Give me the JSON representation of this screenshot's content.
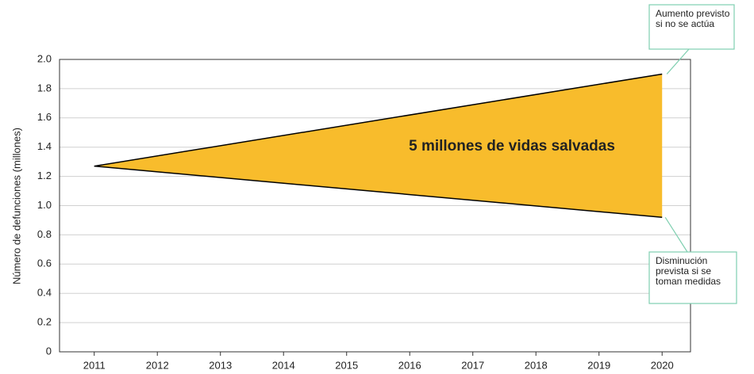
{
  "chart_data": {
    "type": "line",
    "ylabel": "Número de defunciones (millones)",
    "x": [
      2011,
      2020
    ],
    "series": [
      {
        "color": "#000000",
        "values": [
          1.27,
          1.9
        ]
      },
      {
        "color": "#000000",
        "values": [
          1.27,
          0.92
        ]
      }
    ],
    "fill_between": "#f8bc2c",
    "xlim": [
      2010.45,
      2020.45
    ],
    "xticks": [
      2011,
      2012,
      2013,
      2014,
      2015,
      2016,
      2017,
      2018,
      2019,
      2020
    ],
    "ylim": [
      0,
      2.0
    ],
    "yticks": [
      0,
      0.2,
      0.4,
      0.6,
      0.8,
      {
        "value": 1.0,
        "label": "1.0"
      },
      1.2,
      1.4,
      1.6,
      1.8,
      {
        "value": 2.0,
        "label": "2.0"
      }
    ],
    "grid": true,
    "annotations": [
      {
        "text": "5 millones de vidas salvadas"
      },
      {
        "lines": [
          "Aumento previsto",
          "si no se actúa"
        ]
      },
      {
        "lines": [
          "Disminución",
          "prevista si se",
          "toman medidas"
        ]
      }
    ]
  }
}
